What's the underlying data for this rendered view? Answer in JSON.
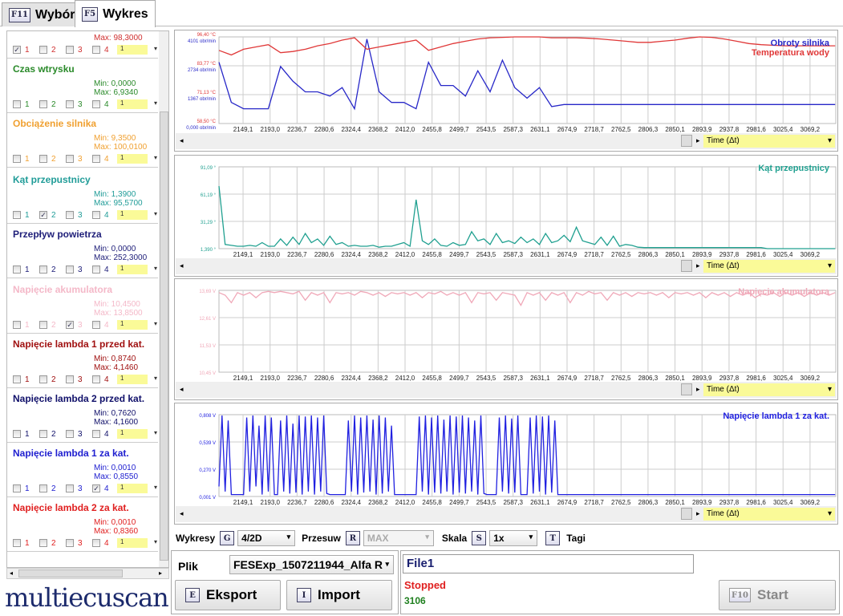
{
  "tabs": [
    {
      "key": "F11",
      "label": "Wybór"
    },
    {
      "key": "F5",
      "label": "Wykres"
    }
  ],
  "params": [
    {
      "title": "",
      "min": "",
      "max": "Max: 98,3000",
      "color": "#d03030",
      "checked": 1,
      "dropdown": "1"
    },
    {
      "title": "Czas wtrysku",
      "min": "Min: 0,0000",
      "max": "Max: 6,9340",
      "color": "#2a8a2a",
      "checked": 0,
      "dropdown": "1"
    },
    {
      "title": "Obciążenie silnika",
      "min": "Min: 9,3500",
      "max": "Max: 100,0100",
      "color": "#f0a030",
      "checked": 0,
      "dropdown": "1"
    },
    {
      "title": "Kąt przepustnicy",
      "min": "Min: 1,3900",
      "max": "Max: 95,5700",
      "color": "#209c98",
      "checked": 2,
      "dropdown": "1"
    },
    {
      "title": "Przepływ powietrza",
      "min": "Min: 0,0000",
      "max": "Max: 252,3000",
      "color": "#20207a",
      "checked": 0,
      "dropdown": "1"
    },
    {
      "title": "Napięcie akumulatora",
      "min": "Min: 10,4500",
      "max": "Max: 13,8500",
      "color": "#f4b8c8",
      "checked": 3,
      "dropdown": "1"
    },
    {
      "title": "Napięcie lambda 1 przed kat.",
      "min": "Min: 0,8740",
      "max": "Max: 4,1460",
      "color": "#a01010",
      "checked": 0,
      "dropdown": "1"
    },
    {
      "title": "Napięcie lambda 2 przed kat.",
      "min": "Min: 0,7620",
      "max": "Max: 4,1600",
      "color": "#10106a",
      "checked": 0,
      "dropdown": "1"
    },
    {
      "title": "Napięcie lambda 1 za kat.",
      "min": "Min: 0,0010",
      "max": "Max: 0,8550",
      "color": "#2020d0",
      "checked": 4,
      "dropdown": "1"
    },
    {
      "title": "Napięcie lambda 2 za kat.",
      "min": "Min: 0,0010",
      "max": "Max: 0,8360",
      "color": "#e02020",
      "checked": 0,
      "dropdown": "1"
    }
  ],
  "check_labels": [
    "1",
    "2",
    "3",
    "4"
  ],
  "logo": "multiecuscan",
  "chart_data": [
    {
      "type": "line",
      "x_start": 2110,
      "x_step": 20,
      "xlim": [
        2110,
        3111
      ],
      "xticks": [
        "2149,1",
        "2193,0",
        "2236,7",
        "2280,6",
        "2324,4",
        "2368,2",
        "2412,0",
        "2455,8",
        "2499,7",
        "2543,5",
        "2587,3",
        "2631,1",
        "2674,9",
        "2718,7",
        "2762,5",
        "2806,3",
        "2850,1",
        "2893,9",
        "2937,8",
        "2981,6",
        "3025,4",
        "3069,2"
      ],
      "xlabel": "Time (Δt)",
      "series": [
        {
          "name": "Obroty silnika",
          "color": "#2828c8",
          "ylim": [
            0,
            4101
          ],
          "yticks": [
            "4101 obr/min",
            "2734 obr/min",
            "1367 obr/min",
            "0,000 obr/min"
          ],
          "values": [
            2900,
            1000,
            700,
            700,
            700,
            2700,
            2000,
            1500,
            1500,
            1300,
            1700,
            700,
            4000,
            1500,
            1000,
            1000,
            700,
            2900,
            1800,
            1800,
            1300,
            2500,
            1500,
            3000,
            1700,
            1200,
            1700,
            800,
            900,
            900,
            900,
            900,
            900,
            900,
            900,
            900,
            900,
            900,
            900,
            900,
            900,
            900,
            900,
            900,
            900,
            900,
            900,
            900,
            900,
            900,
            900
          ]
        },
        {
          "name": "Temperatura wody",
          "color": "#e03838",
          "ylim": [
            58.5,
            96.4
          ],
          "yticks": [
            "96,40 °C",
            "83,77 °C",
            "71,13 °C",
            "58,50 °C"
          ],
          "values": [
            90.5,
            88.5,
            91,
            92,
            93,
            89.5,
            90,
            91,
            92.5,
            93.5,
            95,
            96,
            91,
            92,
            93,
            94,
            95,
            90.5,
            92,
            93.5,
            94.5,
            95.5,
            96,
            96.2,
            96.4,
            96.4,
            96.4,
            96,
            96,
            96,
            95.8,
            95.5,
            95,
            94.5,
            94,
            94,
            94.5,
            95,
            95.8,
            96.4,
            96.2,
            95.5,
            94.5,
            93.5,
            93,
            92.7,
            92.5,
            92.5,
            92.5,
            92.5,
            92.5
          ]
        }
      ]
    },
    {
      "type": "line",
      "x_start": 2110,
      "x_step": 10,
      "xlim": [
        2110,
        3111
      ],
      "xlabel": "Time (Δt)",
      "series": [
        {
          "name": "Kąt przepustnicy",
          "color": "#20a090",
          "ylim": [
            1.39,
            91.09
          ],
          "yticks": [
            "91,09 °",
            "61,19 °",
            "31,29 °",
            "1,390 °"
          ],
          "values": [
            70,
            6,
            5,
            4,
            4,
            5,
            4,
            8,
            4,
            4,
            12,
            5,
            14,
            6,
            18,
            8,
            12,
            5,
            15,
            6,
            8,
            4,
            5,
            4,
            4,
            5,
            3,
            4,
            4,
            6,
            8,
            4,
            55,
            10,
            6,
            12,
            5,
            4,
            8,
            5,
            6,
            20,
            10,
            12,
            6,
            18,
            8,
            10,
            7,
            14,
            8,
            12,
            6,
            18,
            8,
            10,
            16,
            9,
            25,
            10,
            8,
            6,
            14,
            5,
            15,
            4,
            6,
            5,
            3,
            2.5,
            2.5,
            2.5,
            2.5,
            2.5,
            2.5,
            2.5,
            2.5,
            2.5,
            2.5,
            2.5,
            2.5,
            2.5,
            2.5,
            2.5,
            2.5,
            2.5,
            2.5,
            2.5,
            2.5,
            1.4,
            1.4,
            1.4,
            1.4,
            1.4,
            1.4,
            1.4,
            1.4,
            1.4,
            1.4,
            1.4,
            1.4
          ]
        }
      ]
    },
    {
      "type": "line",
      "x_start": 2110,
      "x_step": 10,
      "xlim": [
        2110,
        3111
      ],
      "xlabel": "Time (Δt)",
      "series": [
        {
          "name": "Napięcie akumulatora",
          "color": "#f0a8b8",
          "ylim": [
            10.45,
            13.69
          ],
          "yticks": [
            "13,69 V",
            "12,61 V",
            "11,53 V",
            "10,45 V"
          ],
          "values": [
            13.6,
            13.5,
            13.2,
            13.6,
            13.5,
            13.6,
            13.4,
            13.6,
            13.65,
            13.6,
            13.65,
            13.6,
            13.55,
            13.65,
            13.3,
            13.6,
            13.5,
            13.6,
            13.2,
            13.6,
            13.55,
            13.6,
            13.5,
            13.65,
            13.6,
            13.5,
            13.6,
            13.45,
            13.6,
            13.55,
            13.6,
            13.5,
            13.6,
            13.4,
            13.6,
            13.55,
            13.65,
            13.5,
            13.6,
            13.5,
            13.6,
            13.2,
            13.6,
            13.55,
            13.6,
            13.3,
            13.6,
            13.55,
            13.5,
            13.1,
            13.6,
            13.5,
            13.6,
            13.3,
            13.6,
            13.5,
            13.6,
            13.2,
            13.6,
            13.5,
            13.65,
            13.55,
            13.6,
            13.3,
            13.6,
            13.5,
            13.6,
            13.45,
            13.6,
            13.55,
            13.6,
            13.5,
            13.6,
            13.4,
            13.6,
            13.55,
            13.6,
            13.5,
            13.6,
            13.4,
            13.6,
            13.5,
            13.6,
            13.45,
            13.6,
            13.5,
            13.6,
            13.4,
            13.55,
            13.5,
            13.6,
            13.45,
            13.6,
            13.5,
            13.6,
            13.45,
            13.6,
            13.5,
            13.6,
            13.5,
            13.6
          ]
        }
      ]
    },
    {
      "type": "line",
      "x_start": 2110,
      "x_step": 5,
      "xlim": [
        2110,
        3111
      ],
      "xlabel": "Time (Δt)",
      "series": [
        {
          "name": "Napięcie lambda 1 za kat.",
          "color": "#2020e0",
          "ylim": [
            0.001,
            0.808
          ],
          "yticks": [
            "0,808 V",
            "0,539 V",
            "0,270 V",
            "0,001 V"
          ],
          "values": [
            0.1,
            0.8,
            0.05,
            0.75,
            0.02,
            0.02,
            0.02,
            0.02,
            0.02,
            0.78,
            0.05,
            0.8,
            0.1,
            0.7,
            0.02,
            0.8,
            0.05,
            0.78,
            0.02,
            0.02,
            0.75,
            0.05,
            0.8,
            0.03,
            0.72,
            0.04,
            0.8,
            0.02,
            0.79,
            0.05,
            0.8,
            0.02,
            0.78,
            0.05,
            0.8,
            0.03,
            0.02,
            0.02,
            0.02,
            0.02,
            0.02,
            0.02,
            0.75,
            0.05,
            0.8,
            0.02,
            0.78,
            0.04,
            0.8,
            0.05,
            0.76,
            0.02,
            0.8,
            0.03,
            0.78,
            0.05,
            0.7,
            0.02,
            0.02,
            0.02,
            0.02,
            0.02,
            0.02,
            0.02,
            0.02,
            0.79,
            0.05,
            0.8,
            0.02,
            0.78,
            0.04,
            0.8,
            0.03,
            0.76,
            0.05,
            0.8,
            0.02,
            0.79,
            0.04,
            0.8,
            0.03,
            0.78,
            0.05,
            0.75,
            0.02,
            0.8,
            0.03,
            0.02,
            0.02,
            0.02,
            0.02,
            0.78,
            0.05,
            0.8,
            0.03,
            0.77,
            0.04,
            0.8,
            0.02,
            0.02,
            0.02,
            0.78,
            0.03,
            0.8,
            0.05,
            0.79,
            0.02,
            0.8,
            0.04,
            0.75,
            0.02,
            0.02,
            0.02,
            0.02,
            0.02,
            0.02,
            0.02,
            0.02,
            0.02,
            0.02,
            0.02,
            0.02,
            0.02,
            0.02,
            0.02,
            0.02,
            0.02,
            0.02,
            0.02,
            0.02,
            0.02,
            0.02,
            0.02,
            0.02,
            0.02,
            0.02,
            0.02,
            0.02,
            0.02,
            0.02,
            0.02,
            0.02,
            0.02,
            0.02,
            0.02,
            0.02,
            0.02,
            0.02,
            0.02,
            0.02,
            0.02,
            0.02,
            0.02,
            0.02,
            0.02,
            0.02,
            0.02,
            0.02,
            0.02,
            0.02,
            0.02,
            0.02,
            0.02,
            0.02,
            0.02,
            0.02,
            0.02,
            0.02,
            0.02,
            0.02,
            0.02,
            0.02,
            0.02,
            0.02,
            0.02,
            0.02,
            0.02,
            0.02,
            0.02,
            0.02,
            0.02,
            0.02,
            0.02,
            0.02,
            0.02,
            0.02,
            0.02,
            0.02,
            0.02,
            0.02,
            0.02,
            0.02,
            0.02,
            0.02,
            0.02,
            0.02,
            0.02,
            0.02,
            0.02,
            0.02,
            0.02
          ]
        }
      ]
    }
  ],
  "controls": {
    "wykresy_label": "Wykresy",
    "wykresy_key": "G",
    "wykresy_value": "4/2D",
    "przesuw_label": "Przesuw",
    "przesuw_key": "R",
    "przesuw_value": "MAX",
    "skala_label": "Skala",
    "skala_key": "S",
    "skala_value": "1x",
    "tagi_key": "T",
    "tagi_label": "Tagi"
  },
  "file": {
    "label": "Plik",
    "value": "FESExp_1507211944_Alfa R",
    "eksport_key": "E",
    "eksport": "Eksport",
    "import_key": "I",
    "import": "Import"
  },
  "status": {
    "name": "File1",
    "state": "Stopped",
    "count": "3106",
    "start_key": "F10",
    "start": "Start"
  }
}
